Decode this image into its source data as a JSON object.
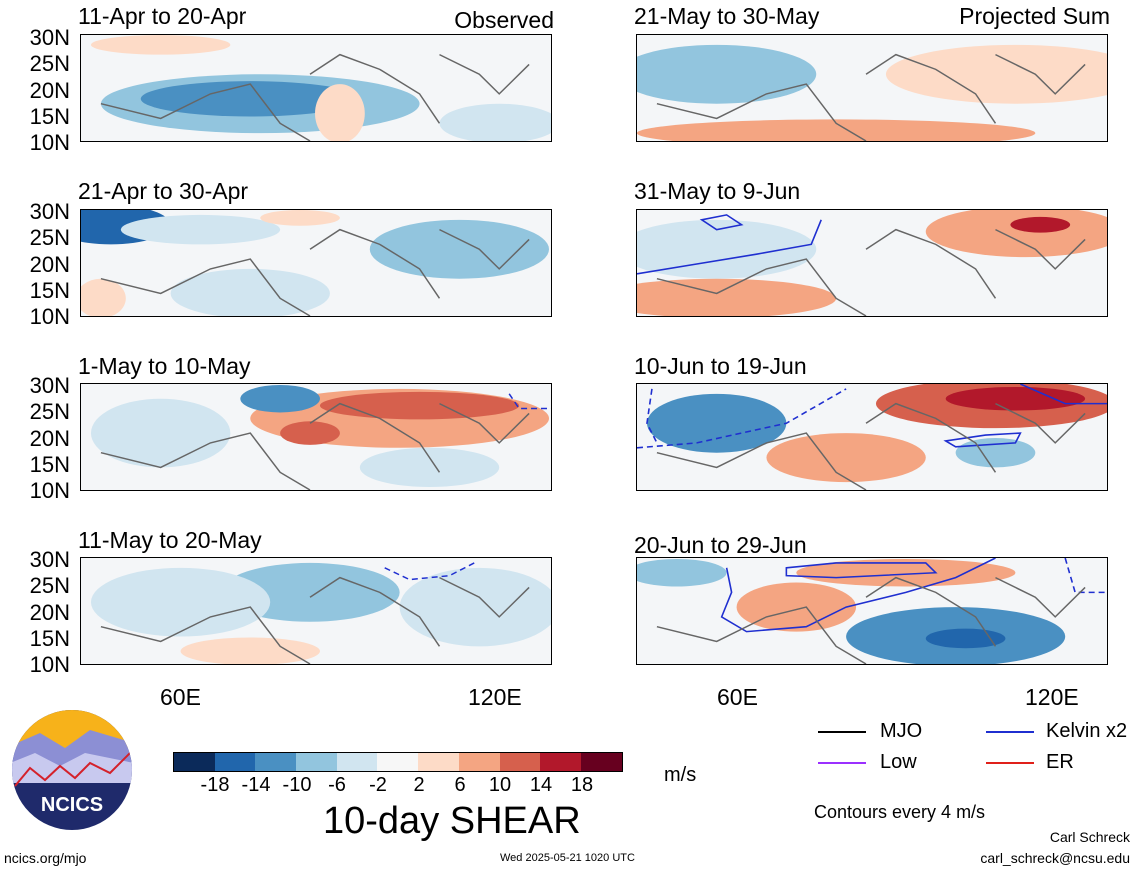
{
  "observed_label": "Observed",
  "projected_label": "Projected Sum",
  "left_panels": [
    {
      "title": "11-Apr to 20-Apr"
    },
    {
      "title": "21-Apr to 30-Apr"
    },
    {
      "title": "1-May to 10-May"
    },
    {
      "title": "11-May to 20-May"
    }
  ],
  "right_panels": [
    {
      "title": "21-May to 30-May"
    },
    {
      "title": "31-May to 9-Jun"
    },
    {
      "title": "10-Jun to 19-Jun"
    },
    {
      "title": "20-Jun to 29-Jun"
    }
  ],
  "lat_labels": [
    "30N",
    "25N",
    "20N",
    "15N",
    "10N"
  ],
  "lon_labels": [
    "60E",
    "120E"
  ],
  "colorbar": {
    "ticks": [
      "-18",
      "-14",
      "-10",
      "-6",
      "-2",
      "2",
      "6",
      "10",
      "14",
      "18"
    ],
    "colors": [
      "#0b2a5a",
      "#2166ac",
      "#4a90c2",
      "#92c5de",
      "#d1e5f0",
      "#f7f7f7",
      "#fddbc7",
      "#f4a582",
      "#d6604d",
      "#b2182b",
      "#67001f"
    ],
    "units": "m/s",
    "title": "10-day SHEAR"
  },
  "legend": {
    "mjo": "MJO",
    "kelvin": "Kelvin x2",
    "low": "Low",
    "er": "ER",
    "contours_note": "Contours every 4 m/s"
  },
  "logo_text": "NCICS",
  "footer": {
    "url": "ncics.org/mjo",
    "timestamp": "Wed 2025-05-21 1020 UTC",
    "author": "Carl Schreck",
    "email": "carl_schreck@ncsu.edu"
  }
}
